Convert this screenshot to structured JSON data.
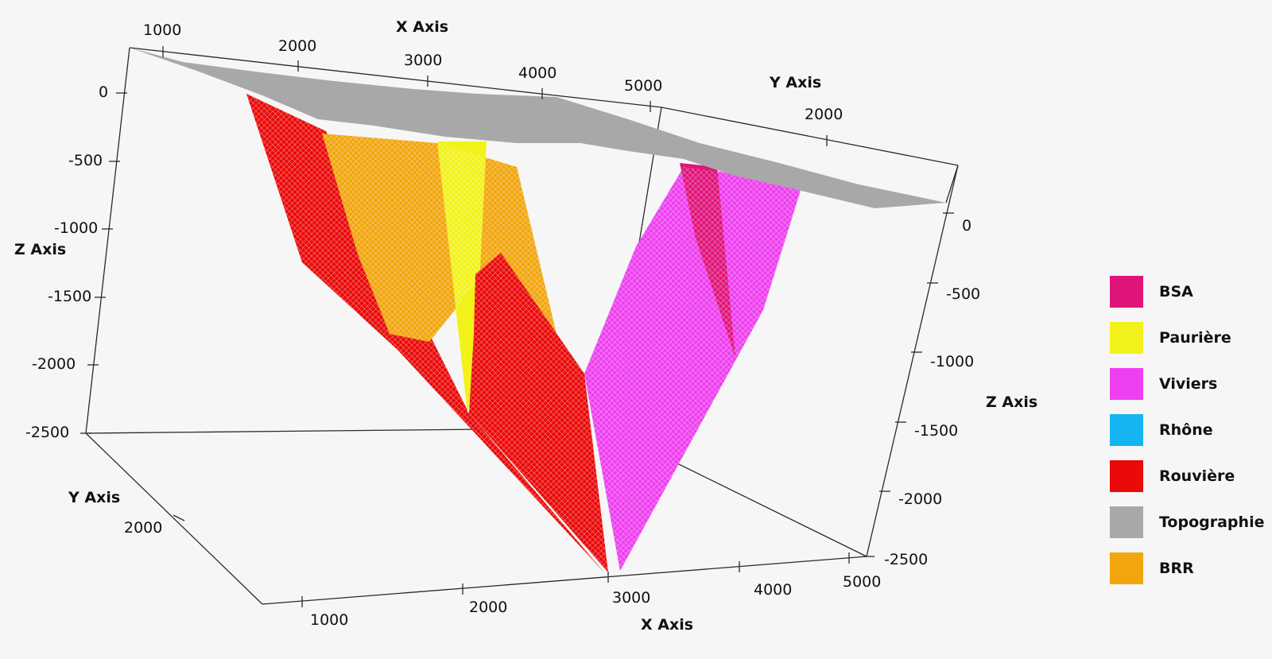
{
  "axes": {
    "x_axis_title": "X Axis",
    "y_axis_title": "Y Axis",
    "z_axis_title": "Z Axis",
    "x_ticks": [
      "1000",
      "2000",
      "3000",
      "4000",
      "5000"
    ],
    "y_ticks": [
      "2000"
    ],
    "z_ticks_left": [
      "0",
      "-500",
      "-1000",
      "-1500",
      "-2000",
      "-2500"
    ],
    "z_ticks_right": [
      "0",
      "-500",
      "-1000",
      "-1500",
      "-2000",
      "-2500"
    ]
  },
  "legend": [
    {
      "label": "BSA",
      "color": "#e0157a"
    },
    {
      "label": "Paurière",
      "color": "#f2f21a"
    },
    {
      "label": "Viviers",
      "color": "#ee3ff0"
    },
    {
      "label": "Rhône",
      "color": "#14b4f0"
    },
    {
      "label": "Rouvière",
      "color": "#ea0a0a"
    },
    {
      "label": "Topographie",
      "color": "#a8a8a8"
    },
    {
      "label": "BRR",
      "color": "#f2a60e"
    }
  ],
  "colors": {
    "background": "#f6f6f6",
    "axis_line": "#2a2a2a"
  }
}
